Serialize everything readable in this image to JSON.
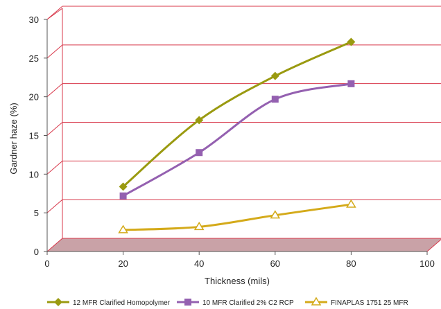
{
  "chart_data": {
    "type": "line",
    "title": "",
    "xlabel": "Thickness (mils)",
    "ylabel": "Gardner haze (%)",
    "xlim": [
      0,
      100
    ],
    "ylim": [
      0,
      30
    ],
    "x_ticks": [
      "0",
      "20",
      "40",
      "60",
      "80",
      "100"
    ],
    "y_ticks": [
      "0",
      "5",
      "10",
      "15",
      "20",
      "25",
      "30"
    ],
    "grid": "horizontal",
    "legend_position": "bottom",
    "series": [
      {
        "name": "12 MFR Clarified Homopolymer",
        "color": "#9a9a10",
        "marker": "diamond-filled",
        "x": [
          20,
          40,
          60,
          80
        ],
        "y": [
          7.4,
          16.0,
          21.7,
          26.1
        ]
      },
      {
        "name": "10 MFR Clarified 2% C2 RCP",
        "color": "#9460b0",
        "marker": "square-filled",
        "x": [
          20,
          40,
          60,
          80
        ],
        "y": [
          6.2,
          11.8,
          18.7,
          20.7
        ]
      },
      {
        "name": "FINAPLAS 1751 25 MFR",
        "color": "#d4aa1a",
        "marker": "triangle-open",
        "x": [
          20,
          40,
          60,
          80
        ],
        "y": [
          1.8,
          2.2,
          3.7,
          5.1
        ]
      }
    ]
  }
}
